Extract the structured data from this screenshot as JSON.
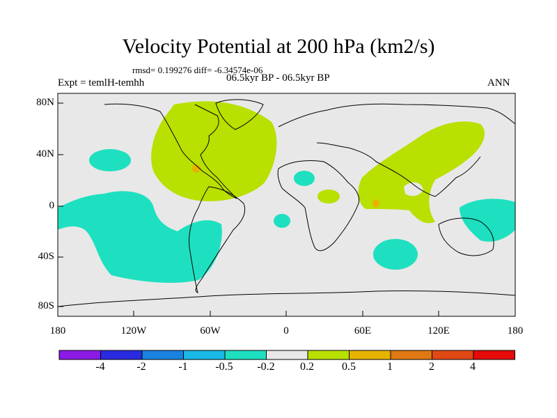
{
  "title": "Velocity Potential at 200 hPa (km2/s)",
  "stats_line": "rmsd= 0.199276 diff= -6.34574e-06",
  "experiment_label": "Expt = temlH-temhh",
  "period_label": "06.5kyr BP - 06.5kyr BP",
  "season_label": "ANN",
  "lat_ticks": [
    "80N",
    "40N",
    "0",
    "40S",
    "80S"
  ],
  "lon_ticks": [
    "180",
    "120W",
    "60W",
    "0",
    "60E",
    "120E",
    "180"
  ],
  "colorbar": {
    "labels": [
      "-4",
      "-2",
      "-1",
      "-0.5",
      "-0.2",
      "0.2",
      "0.5",
      "1",
      "2",
      "4"
    ],
    "colors": [
      "#8c1ae6",
      "#2a2ae0",
      "#1a82e0",
      "#19b8e6",
      "#1ee0c0",
      "#e8e8e8",
      "#b8e000",
      "#e6b400",
      "#e07814",
      "#e04814",
      "#e60a0a"
    ]
  },
  "colors": {
    "background": "#e8e8e8",
    "negative_fill": "#1ee0c0",
    "positive_fill": "#b8e000",
    "peak_fill": "#e6b400"
  }
}
